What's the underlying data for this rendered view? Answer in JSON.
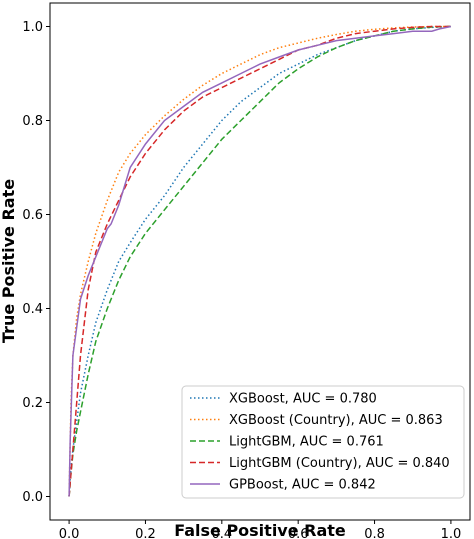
{
  "chart_data": {
    "type": "line",
    "xlabel": "False Positive Rate",
    "ylabel": "True Positive Rate",
    "xlim": [
      -0.05,
      1.05
    ],
    "ylim": [
      -0.05,
      1.05
    ],
    "xticks": [
      "0.0",
      "0.2",
      "0.4",
      "0.6",
      "0.8",
      "1.0"
    ],
    "yticks": [
      "0.0",
      "0.2",
      "0.4",
      "0.6",
      "0.8",
      "1.0"
    ],
    "grid": false,
    "legend_position": "lower-right",
    "series": [
      {
        "name": "XGBoost, AUC = 0.780",
        "color": "#1f77b4",
        "style": "dotted",
        "x": [
          0,
          0.005,
          0.01,
          0.02,
          0.03,
          0.05,
          0.07,
          0.1,
          0.13,
          0.16,
          0.2,
          0.25,
          0.3,
          0.35,
          0.4,
          0.45,
          0.5,
          0.55,
          0.6,
          0.65,
          0.7,
          0.75,
          0.8,
          0.85,
          0.9,
          0.95,
          1.0
        ],
        "y": [
          0,
          0.06,
          0.1,
          0.16,
          0.22,
          0.3,
          0.37,
          0.44,
          0.5,
          0.54,
          0.59,
          0.64,
          0.7,
          0.75,
          0.8,
          0.84,
          0.87,
          0.9,
          0.92,
          0.94,
          0.955,
          0.97,
          0.98,
          0.99,
          0.995,
          0.998,
          1.0
        ]
      },
      {
        "name": "XGBoost (Country), AUC = 0.863",
        "color": "#ff7f0e",
        "style": "dotted",
        "x": [
          0,
          0.005,
          0.01,
          0.02,
          0.03,
          0.05,
          0.07,
          0.1,
          0.13,
          0.16,
          0.2,
          0.25,
          0.3,
          0.35,
          0.4,
          0.45,
          0.5,
          0.55,
          0.6,
          0.65,
          0.7,
          0.75,
          0.8,
          0.85,
          0.9,
          0.95,
          1.0
        ],
        "y": [
          0,
          0.2,
          0.3,
          0.38,
          0.43,
          0.5,
          0.56,
          0.63,
          0.69,
          0.73,
          0.77,
          0.81,
          0.845,
          0.875,
          0.9,
          0.92,
          0.94,
          0.955,
          0.965,
          0.975,
          0.983,
          0.99,
          0.994,
          0.997,
          0.999,
          1.0,
          1.0
        ]
      },
      {
        "name": "LightGBM, AUC = 0.761",
        "color": "#2ca02c",
        "style": "dashed",
        "x": [
          0,
          0.005,
          0.01,
          0.02,
          0.03,
          0.05,
          0.07,
          0.1,
          0.13,
          0.16,
          0.2,
          0.25,
          0.3,
          0.35,
          0.4,
          0.45,
          0.5,
          0.55,
          0.6,
          0.65,
          0.7,
          0.75,
          0.8,
          0.85,
          0.9,
          0.95,
          1.0
        ],
        "y": [
          0,
          0.05,
          0.09,
          0.14,
          0.18,
          0.26,
          0.33,
          0.4,
          0.46,
          0.51,
          0.56,
          0.61,
          0.66,
          0.71,
          0.76,
          0.8,
          0.84,
          0.88,
          0.91,
          0.935,
          0.955,
          0.97,
          0.98,
          0.99,
          0.995,
          0.999,
          1.0
        ]
      },
      {
        "name": "LightGBM (Country), AUC = 0.840",
        "color": "#d62728",
        "style": "dashed",
        "x": [
          0,
          0.005,
          0.01,
          0.02,
          0.03,
          0.05,
          0.07,
          0.1,
          0.13,
          0.16,
          0.2,
          0.25,
          0.3,
          0.35,
          0.4,
          0.45,
          0.5,
          0.55,
          0.6,
          0.65,
          0.7,
          0.75,
          0.8,
          0.85,
          0.9,
          0.95,
          1.0
        ],
        "y": [
          0,
          0.05,
          0.1,
          0.2,
          0.3,
          0.44,
          0.52,
          0.58,
          0.63,
          0.68,
          0.73,
          0.78,
          0.82,
          0.85,
          0.87,
          0.89,
          0.91,
          0.93,
          0.95,
          0.96,
          0.975,
          0.985,
          0.99,
          0.995,
          0.998,
          1.0,
          1.0
        ]
      },
      {
        "name": "GPBoost, AUC = 0.842",
        "color": "#9467bd",
        "style": "solid",
        "x": [
          0,
          0.003,
          0.006,
          0.01,
          0.02,
          0.03,
          0.05,
          0.07,
          0.09,
          0.1,
          0.11,
          0.13,
          0.16,
          0.2,
          0.25,
          0.3,
          0.35,
          0.4,
          0.45,
          0.5,
          0.55,
          0.6,
          0.65,
          0.7,
          0.75,
          0.8,
          0.85,
          0.9,
          0.95,
          0.97,
          1.0
        ],
        "y": [
          0,
          0.12,
          0.2,
          0.3,
          0.36,
          0.42,
          0.47,
          0.51,
          0.55,
          0.57,
          0.58,
          0.62,
          0.7,
          0.75,
          0.8,
          0.83,
          0.86,
          0.88,
          0.9,
          0.92,
          0.935,
          0.95,
          0.96,
          0.97,
          0.975,
          0.98,
          0.985,
          0.99,
          0.99,
          0.995,
          1.0
        ]
      }
    ]
  }
}
